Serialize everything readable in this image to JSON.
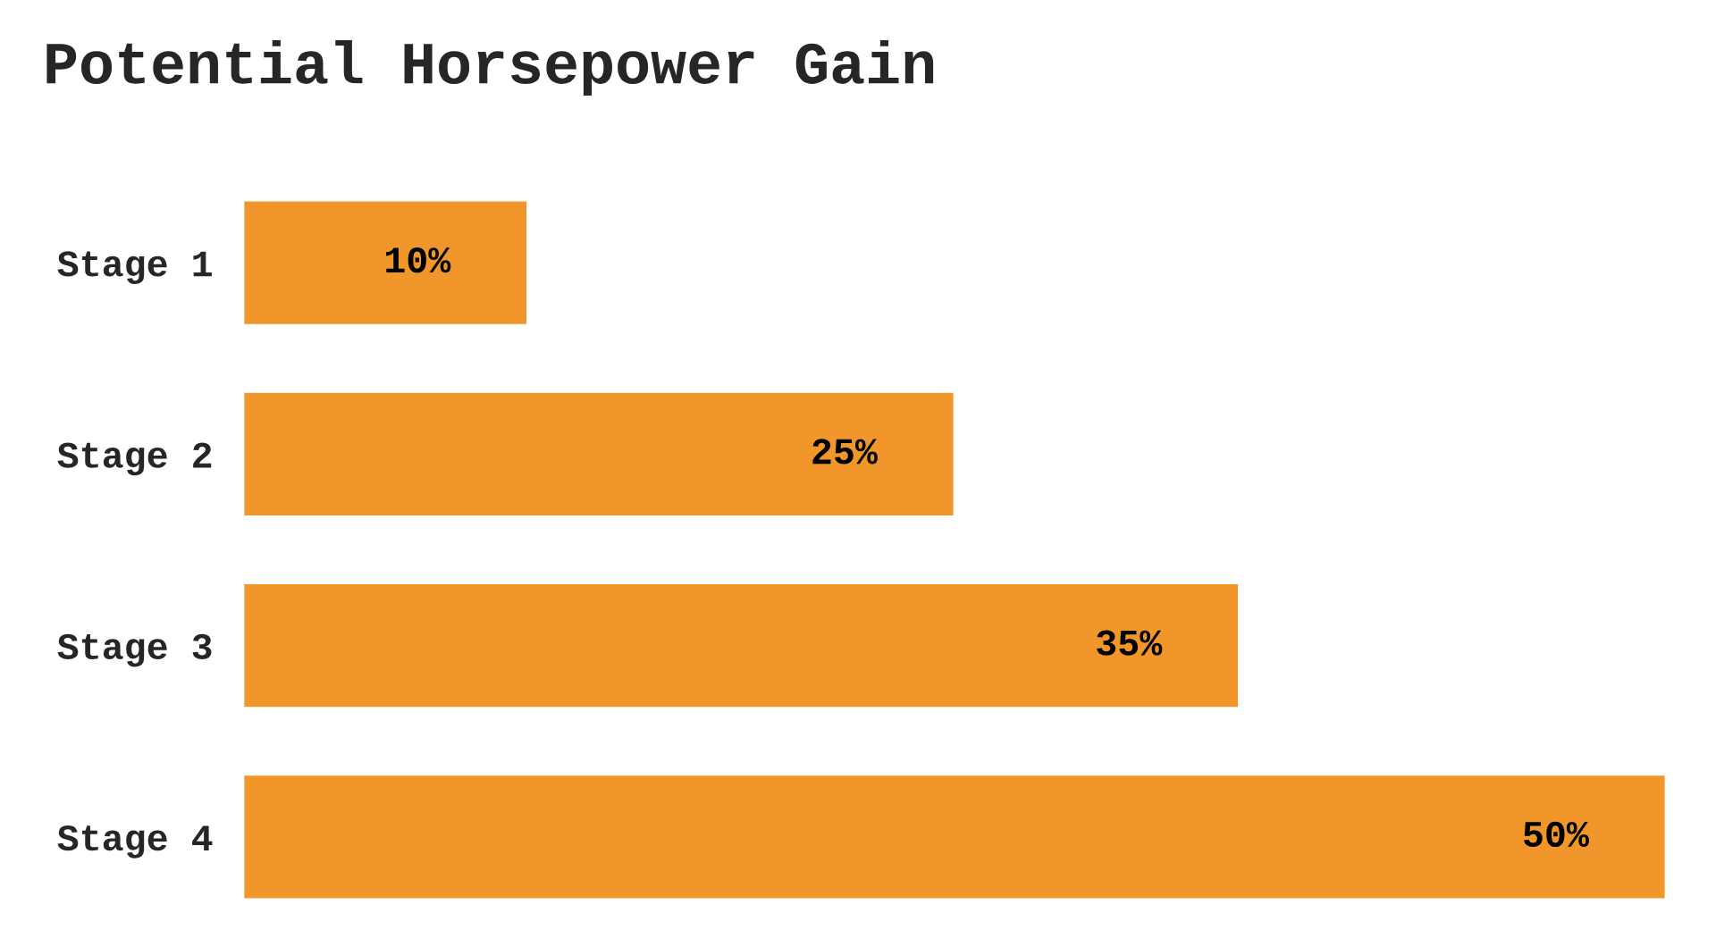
{
  "chart_data": {
    "type": "bar",
    "orientation": "horizontal",
    "title": "Potential Horsepower Gain",
    "categories": [
      "Stage 1",
      "Stage 2",
      "Stage 3",
      "Stage 4"
    ],
    "values": [
      10,
      25,
      35,
      50
    ],
    "value_labels": [
      "10%",
      "25%",
      "35%",
      "50%"
    ],
    "color": "#f0962a",
    "grid": false,
    "legend": false
  }
}
